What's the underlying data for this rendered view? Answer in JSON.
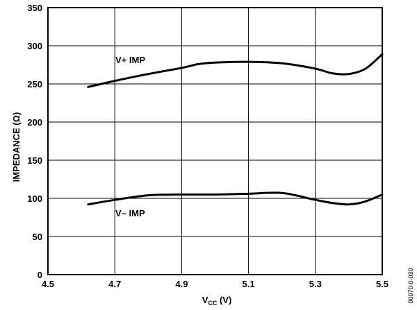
{
  "figure_id": "00070-0-030",
  "chart_data": {
    "type": "line",
    "title": "",
    "xlabel_main": "V",
    "xlabel_sub": "CC",
    "xlabel_unit": " (V)",
    "ylabel": "IMPEDANCE (Ω)",
    "xlim": [
      4.5,
      5.5
    ],
    "ylim": [
      0,
      350
    ],
    "x_ticks": [
      "4.5",
      "4.7",
      "4.9",
      "5.1",
      "5.3",
      "5.5"
    ],
    "y_ticks": [
      "0",
      "50",
      "100",
      "150",
      "200",
      "250",
      "300",
      "350"
    ],
    "grid": true,
    "legend": "none",
    "series": [
      {
        "name": "V+ IMP",
        "x": [
          4.62,
          4.7,
          4.8,
          4.9,
          4.95,
          5.0,
          5.1,
          5.2,
          5.3,
          5.35,
          5.4,
          5.45,
          5.5
        ],
        "y": [
          246,
          254,
          263,
          271,
          276,
          278,
          279,
          277,
          270,
          264,
          263,
          270,
          289
        ]
      },
      {
        "name": "V– IMP",
        "x": [
          4.62,
          4.7,
          4.8,
          4.9,
          5.0,
          5.1,
          5.2,
          5.3,
          5.35,
          5.4,
          5.45,
          5.5
        ],
        "y": [
          92,
          98,
          104,
          105,
          105,
          106,
          107,
          98,
          94,
          92,
          96,
          105
        ]
      }
    ]
  }
}
